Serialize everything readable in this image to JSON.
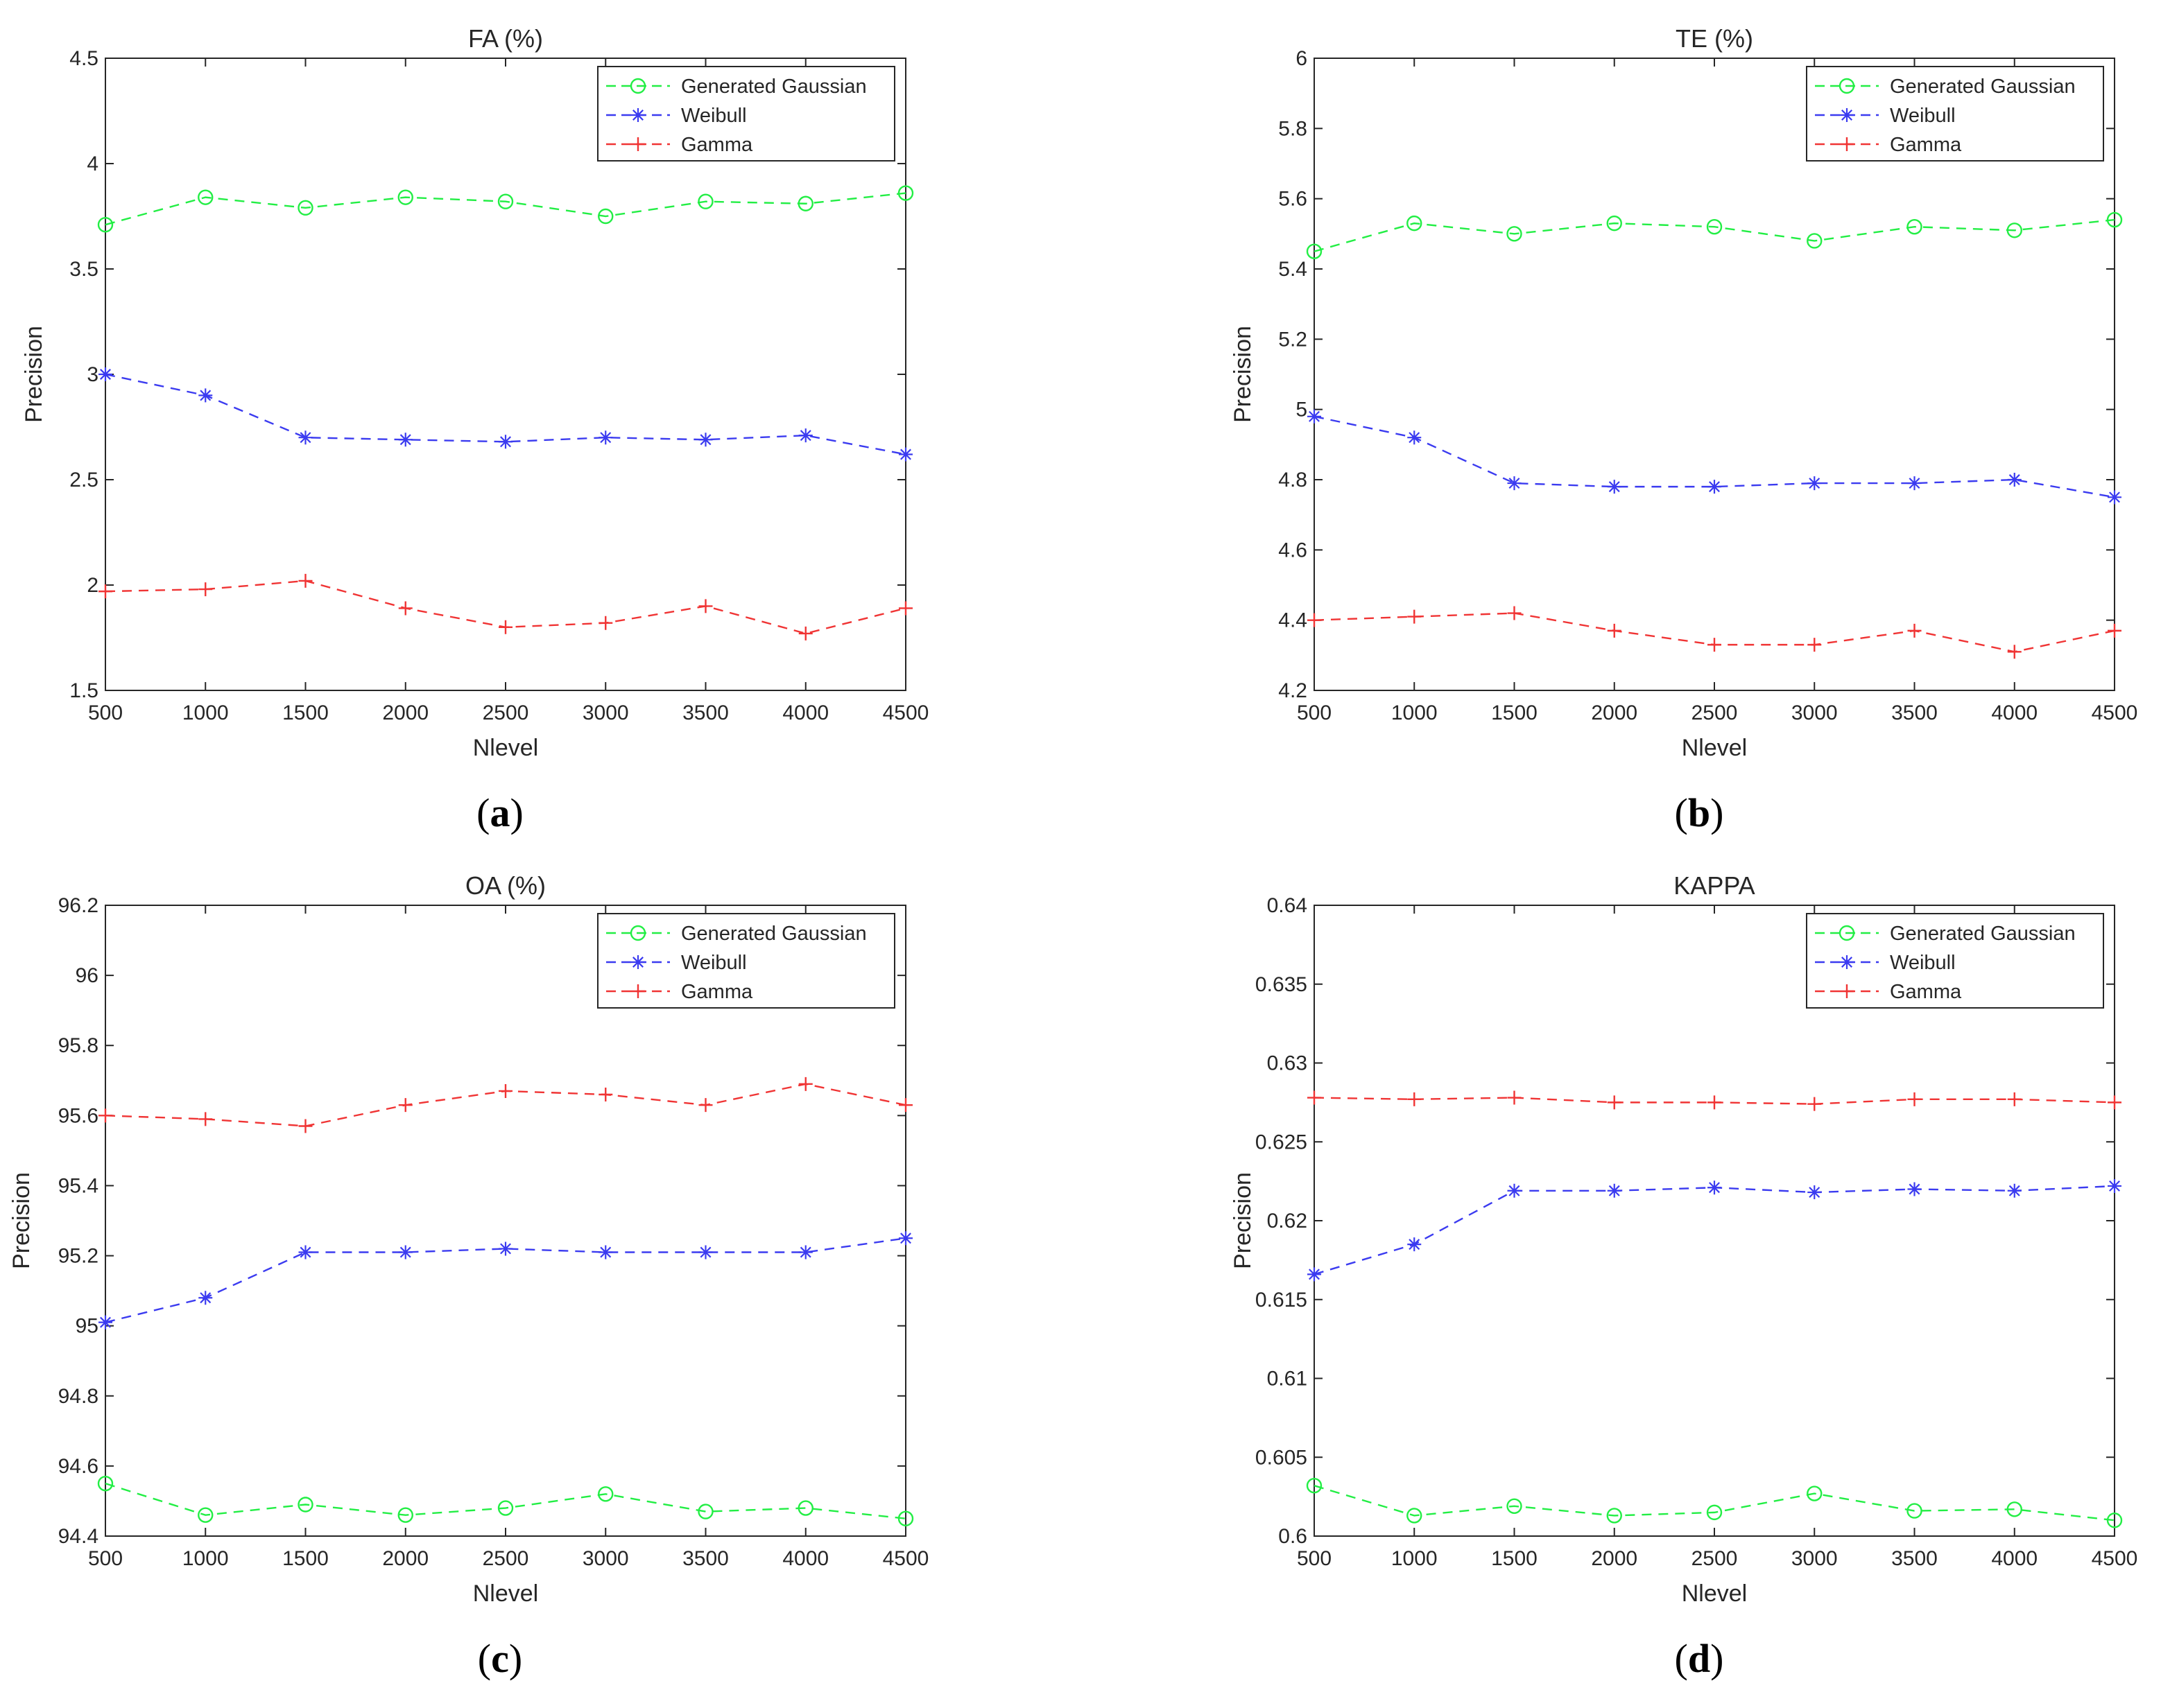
{
  "colors": {
    "gaussian": "#22ee44",
    "weibull": "#3b3bf0",
    "gamma": "#f03434",
    "axis": "#262626"
  },
  "legend_labels": [
    "Generated Gaussian",
    "Weibull",
    "Gamma"
  ],
  "chart_data": [
    {
      "id": "a",
      "type": "line",
      "title": "FA (%)",
      "xlabel": "Nlevel",
      "ylabel": "Precision",
      "panel_label": {
        "open": "(",
        "letter": "a",
        "close": ")"
      },
      "x": [
        500,
        1000,
        1500,
        2000,
        2500,
        3000,
        3500,
        4000,
        4500
      ],
      "xlim": [
        500,
        4500
      ],
      "ylim": [
        1.5,
        4.5
      ],
      "yticks": [
        "1.5",
        "2",
        "2.5",
        "3",
        "3.5",
        "4",
        "4.5"
      ],
      "xticks": [
        "500",
        "1000",
        "1500",
        "2000",
        "2500",
        "3000",
        "3500",
        "4000",
        "4500"
      ],
      "legend_position": "top-right",
      "series": [
        {
          "name": "Generated Gaussian",
          "marker": "circle",
          "values": [
            3.71,
            3.84,
            3.79,
            3.84,
            3.82,
            3.75,
            3.82,
            3.81,
            3.86
          ]
        },
        {
          "name": "Weibull",
          "marker": "asterisk",
          "values": [
            3.0,
            2.9,
            2.7,
            2.69,
            2.68,
            2.7,
            2.69,
            2.71,
            2.62
          ]
        },
        {
          "name": "Gamma",
          "marker": "plus",
          "values": [
            1.97,
            1.98,
            2.02,
            1.89,
            1.8,
            1.82,
            1.9,
            1.77,
            1.89
          ]
        }
      ]
    },
    {
      "id": "b",
      "type": "line",
      "title": "TE (%)",
      "xlabel": "Nlevel",
      "ylabel": "Precision",
      "panel_label": {
        "open": "(",
        "letter": "b",
        "close": ")"
      },
      "x": [
        500,
        1000,
        1500,
        2000,
        2500,
        3000,
        3500,
        4000,
        4500
      ],
      "xlim": [
        500,
        4500
      ],
      "ylim": [
        4.2,
        6.0
      ],
      "yticks": [
        "4.2",
        "4.4",
        "4.6",
        "4.8",
        "5",
        "5.2",
        "5.4",
        "5.6",
        "5.8",
        "6"
      ],
      "xticks": [
        "500",
        "1000",
        "1500",
        "2000",
        "2500",
        "3000",
        "3500",
        "4000",
        "4500"
      ],
      "legend_position": "top-right",
      "series": [
        {
          "name": "Generated Gaussian",
          "marker": "circle",
          "values": [
            5.45,
            5.53,
            5.5,
            5.53,
            5.52,
            5.48,
            5.52,
            5.51,
            5.54
          ]
        },
        {
          "name": "Weibull",
          "marker": "asterisk",
          "values": [
            4.98,
            4.92,
            4.79,
            4.78,
            4.78,
            4.79,
            4.79,
            4.8,
            4.75
          ]
        },
        {
          "name": "Gamma",
          "marker": "plus",
          "values": [
            4.4,
            4.41,
            4.42,
            4.37,
            4.33,
            4.33,
            4.37,
            4.31,
            4.37
          ]
        }
      ]
    },
    {
      "id": "c",
      "type": "line",
      "title": "OA (%)",
      "xlabel": "Nlevel",
      "ylabel": "Precision",
      "panel_label": {
        "open": "(",
        "letter": "c",
        "close": ")"
      },
      "x": [
        500,
        1000,
        1500,
        2000,
        2500,
        3000,
        3500,
        4000,
        4500
      ],
      "xlim": [
        500,
        4500
      ],
      "ylim": [
        94.4,
        96.2
      ],
      "yticks": [
        "94.4",
        "94.6",
        "94.8",
        "95",
        "95.2",
        "95.4",
        "95.6",
        "95.8",
        "96",
        "96.2"
      ],
      "xticks": [
        "500",
        "1000",
        "1500",
        "2000",
        "2500",
        "3000",
        "3500",
        "4000",
        "4500"
      ],
      "legend_position": "top-right",
      "series": [
        {
          "name": "Generated Gaussian",
          "marker": "circle",
          "values": [
            94.55,
            94.46,
            94.49,
            94.46,
            94.48,
            94.52,
            94.47,
            94.48,
            94.45
          ]
        },
        {
          "name": "Weibull",
          "marker": "asterisk",
          "values": [
            95.01,
            95.08,
            95.21,
            95.21,
            95.22,
            95.21,
            95.21,
            95.21,
            95.25
          ]
        },
        {
          "name": "Gamma",
          "marker": "plus",
          "values": [
            95.6,
            95.59,
            95.57,
            95.63,
            95.67,
            95.66,
            95.63,
            95.69,
            95.63
          ]
        }
      ]
    },
    {
      "id": "d",
      "type": "line",
      "title": "KAPPA",
      "xlabel": "Nlevel",
      "ylabel": "Precision",
      "panel_label": {
        "open": "(",
        "letter": "d",
        "close": ")"
      },
      "x": [
        500,
        1000,
        1500,
        2000,
        2500,
        3000,
        3500,
        4000,
        4500
      ],
      "xlim": [
        500,
        4500
      ],
      "ylim": [
        0.6,
        0.64
      ],
      "yticks": [
        "0.6",
        "0.605",
        "0.61",
        "0.615",
        "0.62",
        "0.625",
        "0.63",
        "0.635",
        "0.64"
      ],
      "xticks": [
        "500",
        "1000",
        "1500",
        "2000",
        "2500",
        "3000",
        "3500",
        "4000",
        "4500"
      ],
      "legend_position": "top-right",
      "series": [
        {
          "name": "Generated Gaussian",
          "marker": "circle",
          "values": [
            0.6032,
            0.6013,
            0.6019,
            0.6013,
            0.6015,
            0.6027,
            0.6016,
            0.6017,
            0.601
          ]
        },
        {
          "name": "Weibull",
          "marker": "asterisk",
          "values": [
            0.6166,
            0.6185,
            0.6219,
            0.6219,
            0.6221,
            0.6218,
            0.622,
            0.6219,
            0.6222
          ]
        },
        {
          "name": "Gamma",
          "marker": "plus",
          "values": [
            0.6278,
            0.6277,
            0.6278,
            0.6275,
            0.6275,
            0.6274,
            0.6277,
            0.6277,
            0.6275
          ]
        }
      ]
    }
  ]
}
